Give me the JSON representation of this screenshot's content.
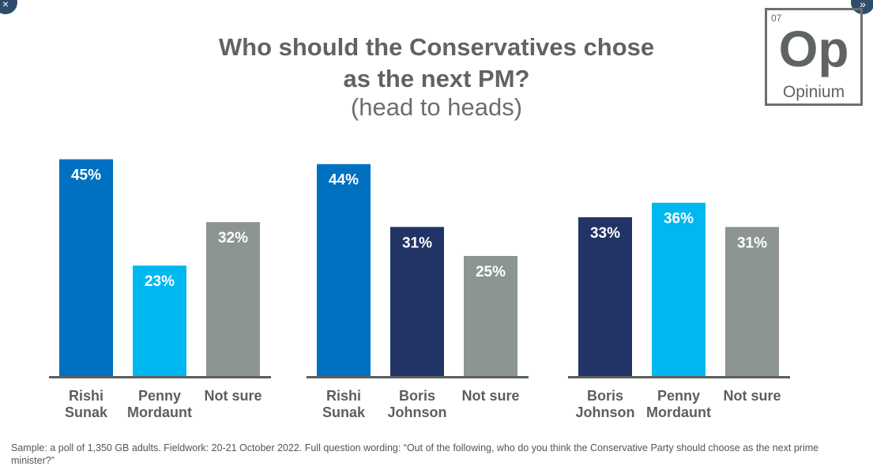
{
  "header": {
    "title_line1": "Who should the Conservatives chose",
    "title_line2": "as the next PM?",
    "subtitle": "(head to heads)"
  },
  "logo": {
    "number": "07",
    "symbol": "Op",
    "name": "Opinium"
  },
  "controls": {
    "close_icon": "close-icon",
    "next_icon": "double-chevron-right-icon",
    "close_glyph": "×",
    "next_glyph": "»"
  },
  "footnote": "Sample: a poll of 1,350 GB adults. Fieldwork: 20-21 October 2022. Full question wording: “Out of the following, who do you think the Conservative Party should choose as the next prime minister?”",
  "chart_data": [
    {
      "type": "bar",
      "categories": [
        "Rishi Sunak",
        "Penny Mordaunt",
        "Not sure"
      ],
      "values": [
        45,
        23,
        32
      ],
      "data_labels": [
        "45%",
        "23%",
        "32%"
      ],
      "colors": [
        "#0070c0",
        "#00b7ef",
        "#8c9590"
      ],
      "ylim": [
        0,
        50
      ],
      "grid": false
    },
    {
      "type": "bar",
      "categories": [
        "Rishi Sunak",
        "Boris Johnson",
        "Not sure"
      ],
      "values": [
        44,
        31,
        25
      ],
      "data_labels": [
        "44%",
        "31%",
        "25%"
      ],
      "colors": [
        "#0070c0",
        "#223466",
        "#8c9590"
      ],
      "ylim": [
        0,
        50
      ],
      "grid": false
    },
    {
      "type": "bar",
      "categories": [
        "Boris Johnson",
        "Penny Mordaunt",
        "Not sure"
      ],
      "values": [
        33,
        36,
        31
      ],
      "data_labels": [
        "33%",
        "36%",
        "31%"
      ],
      "colors": [
        "#223466",
        "#00b7ef",
        "#8c9590"
      ],
      "ylim": [
        0,
        50
      ],
      "grid": false
    }
  ]
}
